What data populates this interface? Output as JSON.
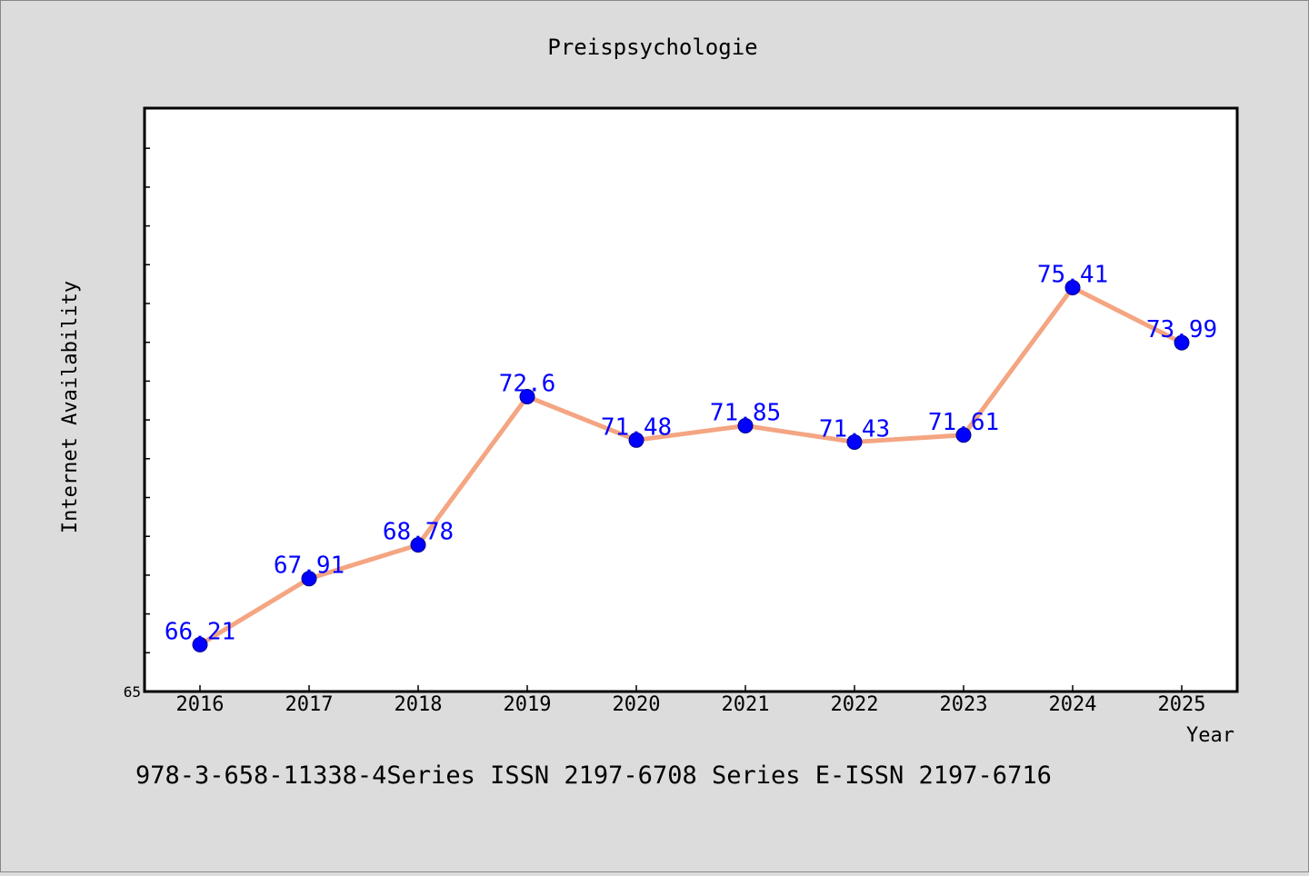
{
  "chart_data": {
    "type": "line",
    "title": "Preispsychologie",
    "xlabel": "Year",
    "ylabel": "Internet Availability",
    "x": [
      "2016",
      "2017",
      "2018",
      "2019",
      "2020",
      "2021",
      "2022",
      "2023",
      "2024",
      "2025"
    ],
    "series": [
      {
        "values": [
          66.21,
          67.91,
          68.78,
          72.6,
          71.48,
          71.85,
          71.43,
          71.61,
          75.41,
          73.99
        ],
        "data_labels": [
          "66.21",
          "67.91",
          "68.78",
          "72.6",
          "71.48",
          "71.85",
          "71.43",
          "71.61",
          "75.41",
          "73.99"
        ]
      }
    ],
    "ylim": [
      65,
      80
    ],
    "y_ticks": [
      "65"
    ],
    "grid": false,
    "colors": {
      "line": "#f4a582",
      "marker": "#0000ff",
      "data_label": "#0000ff",
      "background": "#dcdcdc",
      "plot_background": "#ffffff"
    }
  },
  "footer": {
    "text": "978-3-658-11338-4Series ISSN 2197-6708 Series E-ISSN 2197-6716"
  }
}
